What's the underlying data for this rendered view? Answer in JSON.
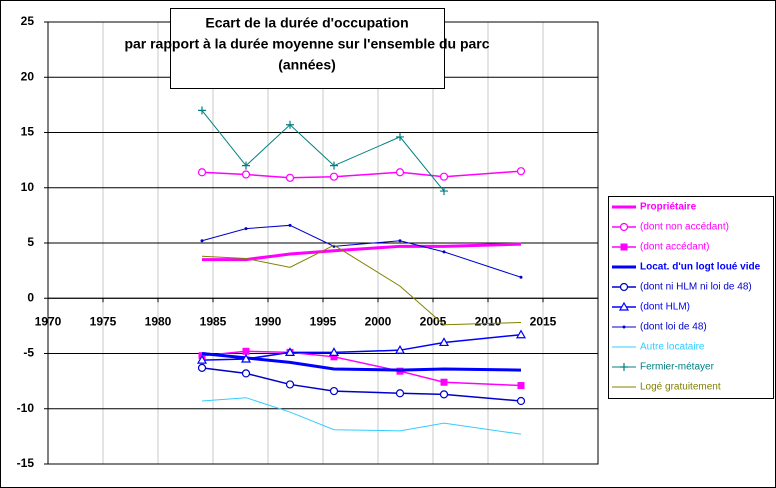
{
  "chart_data": {
    "type": "line",
    "title": [
      "Ecart de la durée d'occupation",
      "par rapport à la durée moyenne sur l'ensemble du parc",
      "(années)"
    ],
    "x": [
      1984,
      1988,
      1992,
      1996,
      2002,
      2006,
      2013
    ],
    "xlim": [
      1970,
      2020
    ],
    "xticks": [
      1970,
      1975,
      1980,
      1985,
      1990,
      1995,
      2000,
      2005,
      2010,
      2015
    ],
    "ylim": [
      -15,
      25
    ],
    "yticks": [
      -15,
      -10,
      -5,
      0,
      5,
      10,
      15,
      20,
      25
    ],
    "grid": true,
    "legend": "right",
    "series": [
      {
        "name": "Propriétaire",
        "color": "#ff00ff",
        "line_width": 3,
        "marker": "none",
        "values": [
          3.5,
          3.5,
          4.0,
          4.3,
          4.7,
          4.7,
          4.9
        ]
      },
      {
        "name": "(dont non accédant)",
        "color": "#ff00ff",
        "line_width": 1.5,
        "marker": "circle",
        "values": [
          11.4,
          11.2,
          10.9,
          11.0,
          11.4,
          11.0,
          11.5
        ]
      },
      {
        "name": "(dont accédant)",
        "color": "#ff00ff",
        "line_width": 1.5,
        "marker": "square",
        "values": [
          -5.2,
          -4.8,
          -4.9,
          -5.3,
          -6.6,
          -7.6,
          -7.9
        ]
      },
      {
        "name": "Locat. d'un logt loué vide",
        "color": "#0000ff",
        "line_width": 3,
        "marker": "none",
        "values": [
          -5.0,
          -5.4,
          -5.8,
          -6.4,
          -6.5,
          -6.4,
          -6.5
        ]
      },
      {
        "name": "(dont ni HLM ni loi de 48)",
        "color": "#0000cc",
        "line_width": 1.5,
        "marker": "circle",
        "values": [
          -6.3,
          -6.8,
          -7.8,
          -8.4,
          -8.6,
          -8.7,
          -9.3
        ]
      },
      {
        "name": "(dont HLM)",
        "color": "#0000ff",
        "line_width": 1.5,
        "marker": "triangle",
        "values": [
          -5.6,
          -5.5,
          -4.9,
          -4.9,
          -4.7,
          -4.0,
          -3.3
        ]
      },
      {
        "name": "(dont loi de 48)",
        "color": "#0000cc",
        "line_width": 1,
        "marker": "dot",
        "values": [
          5.2,
          6.3,
          6.6,
          4.7,
          5.2,
          4.2,
          1.9
        ]
      },
      {
        "name": "Autre locataire",
        "color": "#33ccff",
        "line_width": 1,
        "marker": "none",
        "values": [
          -9.3,
          -9.0,
          -10.3,
          -11.9,
          -12.0,
          -11.3,
          -12.3
        ]
      },
      {
        "name": "Fermier-métayer",
        "color": "#008080",
        "line_width": 1,
        "marker": "plus",
        "values": [
          17.0,
          12.0,
          15.7,
          12.0,
          14.6,
          9.7,
          null
        ]
      },
      {
        "name": "Logé gratuitement",
        "color": "#808000",
        "line_width": 1,
        "marker": "none",
        "values": [
          3.8,
          3.6,
          2.8,
          4.8,
          1.1,
          -2.4,
          -2.2
        ]
      }
    ]
  }
}
